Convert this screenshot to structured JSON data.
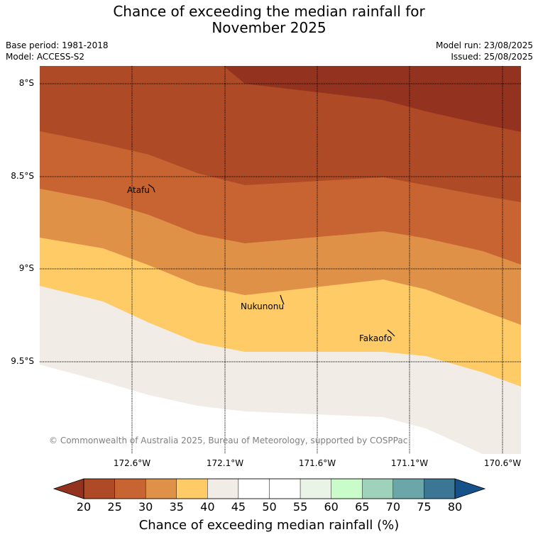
{
  "title": {
    "line1": "Chance of exceeding the median rainfall for",
    "line2": "November 2025"
  },
  "info": {
    "base_period": "Base period: 1981-2018",
    "model": "Model: ACCESS-S2",
    "model_run": "Model run: 23/08/2025",
    "issued": "Issued: 25/08/2025"
  },
  "map": {
    "lat_labels": [
      "8°S",
      "8.5°S",
      "9°S",
      "9.5°S"
    ],
    "lon_labels": [
      "172.6°W",
      "172.1°W",
      "171.6°W",
      "171.1°W",
      "170.6°W"
    ],
    "places": [
      "Atafu",
      "Nukunonu",
      "Fakaofo"
    ],
    "copyright": "© Commonwealth of Australia 2025, Bureau of Meteorology, supported by COSPPac",
    "band_colors": {
      "below_20": "#93321e",
      "20_25": "#ae4a25",
      "25_30": "#c86432",
      "30_35": "#df9148",
      "35_40": "#fecb66",
      "40_45": "#f1ece6"
    }
  },
  "colorbar": {
    "ticks": [
      "20",
      "25",
      "30",
      "35",
      "40",
      "45",
      "50",
      "55",
      "60",
      "65",
      "70",
      "75",
      "80"
    ],
    "colors": [
      "#ae4a25",
      "#c86432",
      "#df9148",
      "#fecb66",
      "#f1ece6",
      "#ffffff",
      "#ffffff",
      "#e9f4e7",
      "#c9fcc9",
      "#9fd2bb",
      "#6ba6a8",
      "#3b7695"
    ],
    "under_color": "#93321e",
    "over_color": "#17518a",
    "label": "Chance of exceeding median rainfall (%)"
  }
}
